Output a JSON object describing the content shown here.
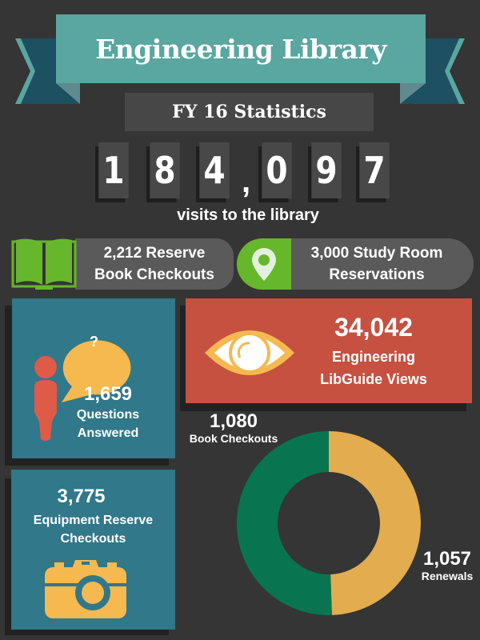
{
  "header": {
    "title": "Engineering Library",
    "subtitle": "FY 16 Statistics"
  },
  "visits": {
    "digits": [
      "1",
      "8",
      "4",
      "0",
      "9",
      "7"
    ],
    "separator": ",",
    "label": "visits to the library"
  },
  "reserve": {
    "text_line1": "2,212 Reserve",
    "text_line2": "Book Checkouts",
    "icon": "open-book-icon"
  },
  "study": {
    "text_line1": "3,000 Study Room",
    "text_line2": "Reservations",
    "icon": "map-pin-icon"
  },
  "questions": {
    "value": "1,659",
    "label_line1": "Questions",
    "label_line2": "Answered",
    "bubble": "?"
  },
  "libguide": {
    "value": "34,042",
    "label_line1": "Engineering",
    "label_line2": "LibGuide Views",
    "icon": "eye-icon"
  },
  "equipment": {
    "value": "3,775",
    "label_line1": "Equipment Reserve",
    "label_line2": "Checkouts",
    "icon": "camera-icon"
  },
  "colors": {
    "teal": "#5aa6a0",
    "card": "#30788a",
    "red": "#c65141",
    "green": "#67b72d",
    "donut_green": "#087550",
    "donut_yellow": "#e2ac4f",
    "accent_yellow": "#f5b94f"
  },
  "chart_data": {
    "type": "pie",
    "donut": true,
    "series": [
      {
        "name": "Book Checkouts",
        "value": 1080,
        "value_label": "1,080",
        "color": "#087550"
      },
      {
        "name": "Renewals",
        "value": 1057,
        "value_label": "1,057",
        "color": "#e2ac4f"
      }
    ]
  }
}
